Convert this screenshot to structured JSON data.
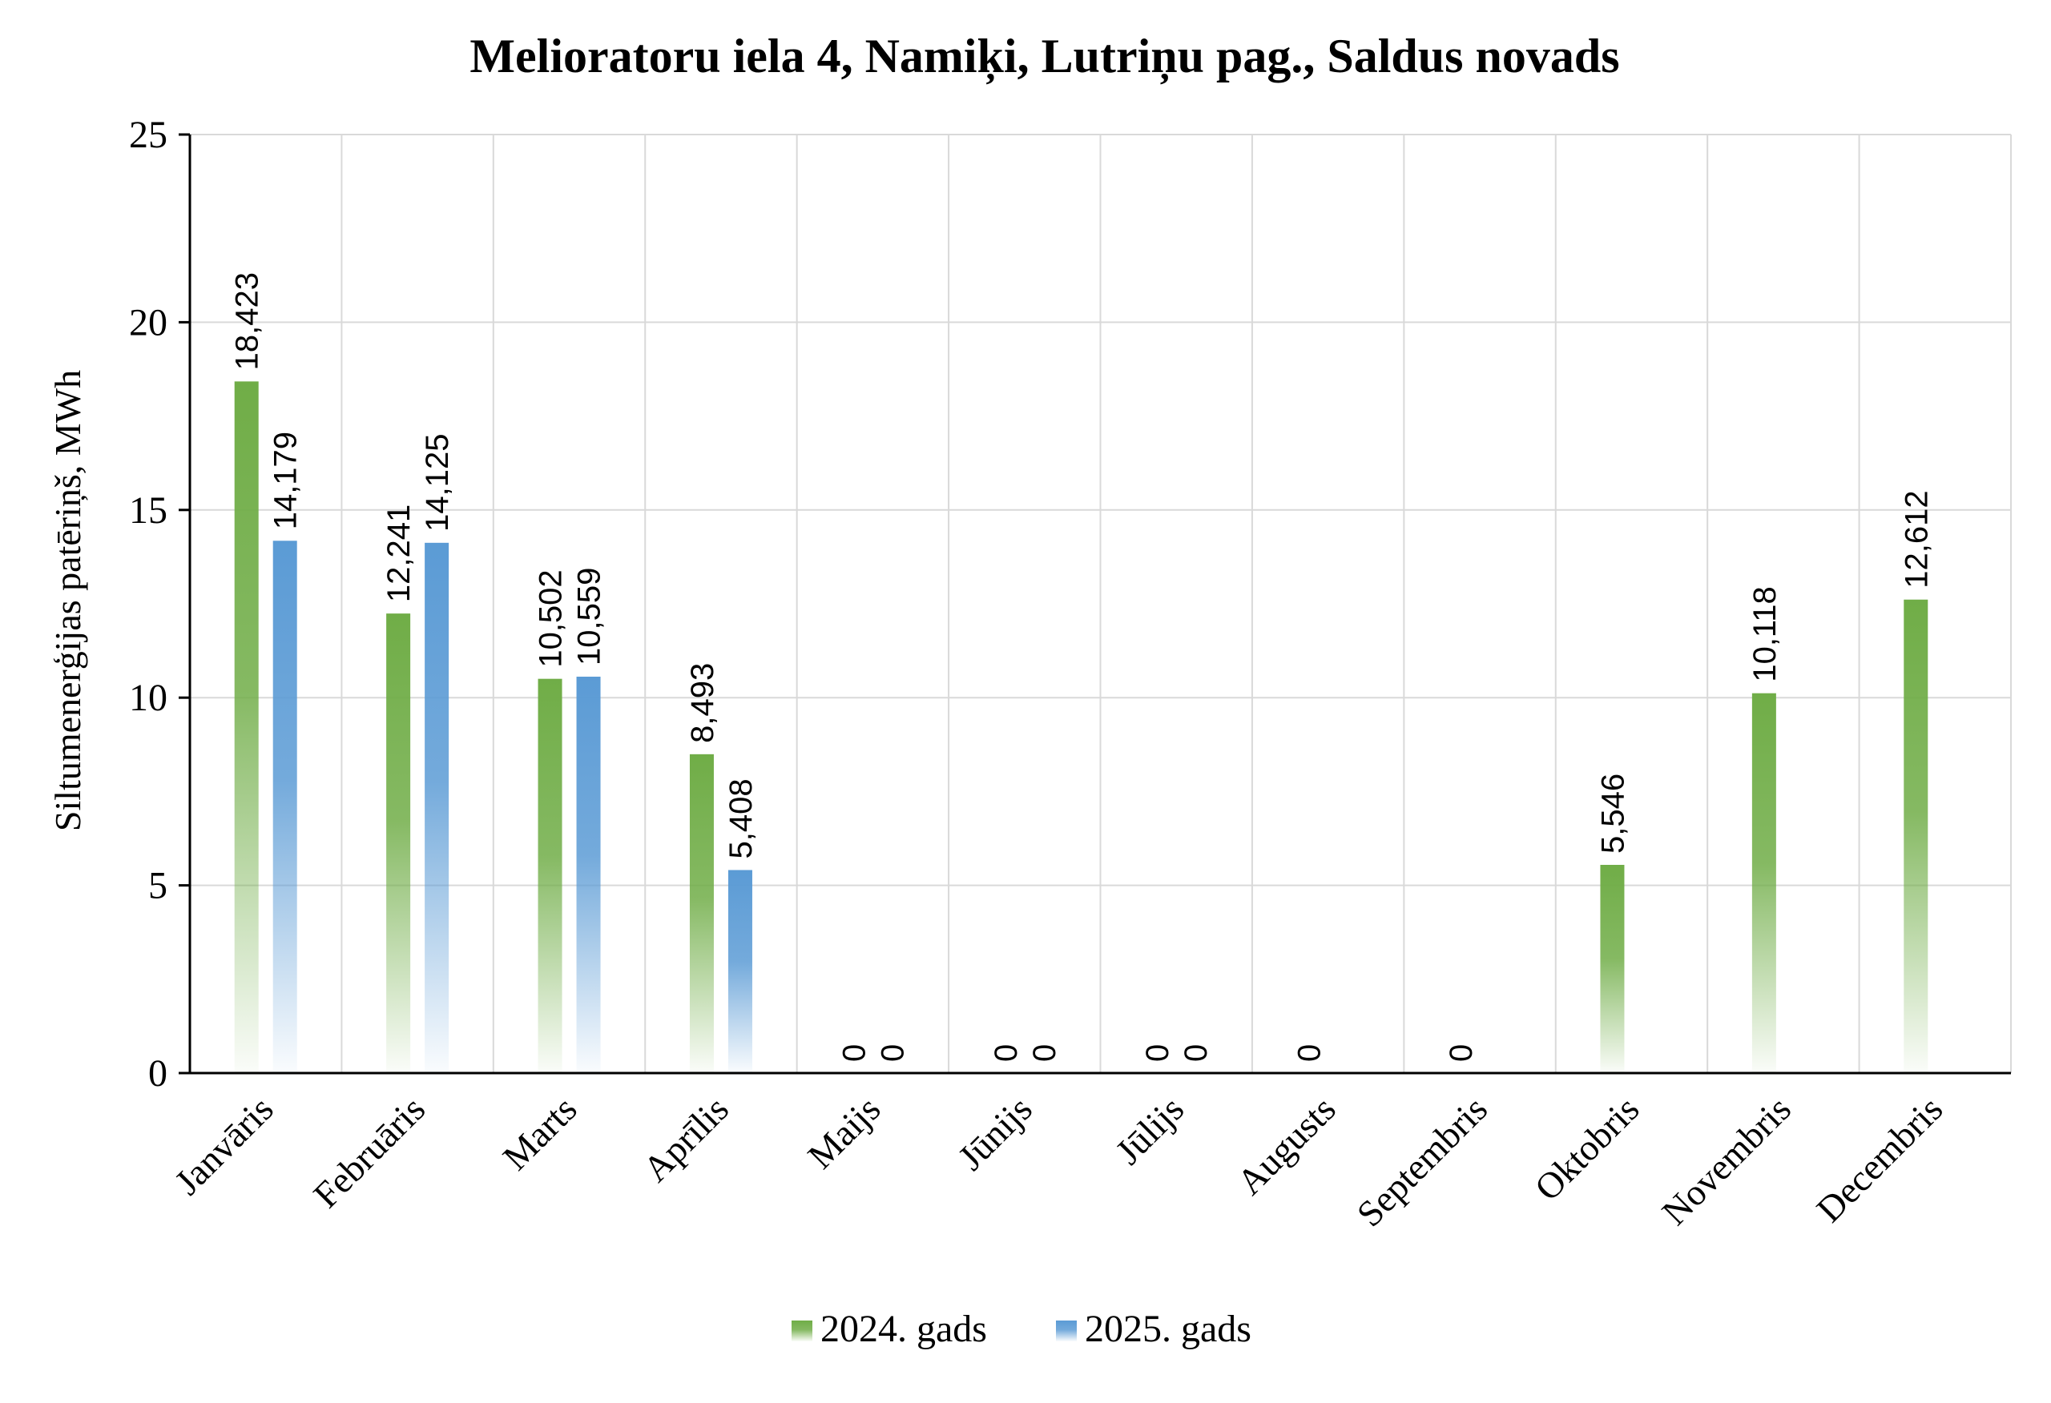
{
  "chart_data": {
    "type": "bar",
    "title": "Melioratoru iela 4, Namiķi, Lutriņu pag., Saldus novads",
    "xlabel": "",
    "ylabel": "Siltumenerģijas patēriņš, MWh",
    "ylim": [
      0,
      25
    ],
    "yticks": [
      0,
      5,
      10,
      15,
      20,
      25
    ],
    "grid": true,
    "legend_position": "bottom",
    "categories": [
      "Janvāris",
      "Februāris",
      "Marts",
      "Aprīlis",
      "Maijs",
      "Jūnijs",
      "Jūlijs",
      "Augusts",
      "Septembris",
      "Oktobris",
      "Novembris",
      "Decembris"
    ],
    "series": [
      {
        "name": "2024. gads",
        "color": "#70ad47",
        "values": [
          18.423,
          12.241,
          10.502,
          8.493,
          0,
          0,
          0,
          0,
          0,
          5.546,
          10.118,
          12.612
        ],
        "labels": [
          "18,423",
          "12,241",
          "10,502",
          "8,493",
          "0",
          "0",
          "0",
          "0",
          "0",
          "5,546",
          "10,118",
          "12,612"
        ]
      },
      {
        "name": "2025. gads",
        "color": "#5b9bd5",
        "values": [
          14.179,
          14.125,
          10.559,
          5.408,
          0,
          0,
          0,
          null,
          null,
          null,
          null,
          null
        ],
        "labels": [
          "14,179",
          "14,125",
          "10,559",
          "5,408",
          "0",
          "0",
          "0",
          null,
          null,
          null,
          null,
          null
        ]
      }
    ]
  }
}
